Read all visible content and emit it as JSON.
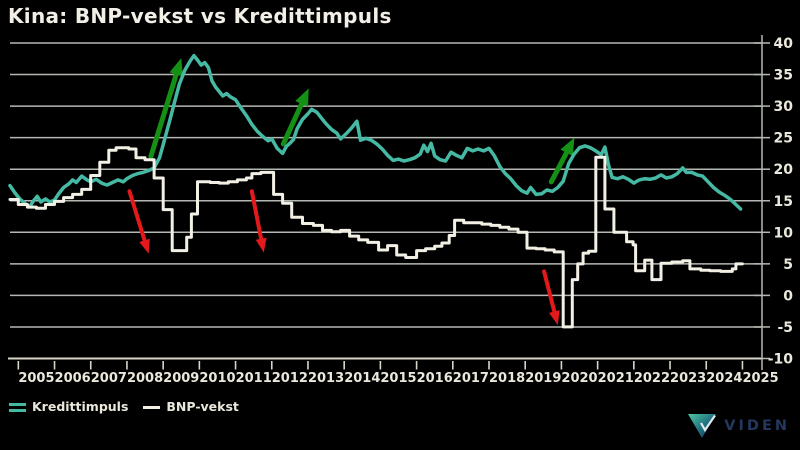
{
  "title": "Kina: BNP-vekst vs Kredittimpuls",
  "colors": {
    "background": "#000000",
    "title_text": "#f2efe6",
    "axis_text": "#eae7db",
    "gridline": "#b4b8b2",
    "axis_line": "#d8d5ca",
    "kredittimpuls": "#46b9a4",
    "bnp_vekst": "#f2efe4",
    "green_arrow": "#149114",
    "red_arrow": "#e4191c",
    "logo_text": "#23375f",
    "logo_gradient_start": "#4ec9a4",
    "logo_gradient_mid": "#1f6d7e",
    "logo_gradient_end": "#142f52"
  },
  "legend": [
    {
      "label": "Kredittimpuls",
      "color": "#46b9a4",
      "style": "double-line"
    },
    {
      "label": "BNP-vekst",
      "color": "#f2efe4",
      "style": "line"
    }
  ],
  "logo": {
    "text": "VIDEN"
  },
  "chart_data": {
    "type": "line",
    "title": "Kina: BNP-vekst vs Kredittimpuls",
    "grid": true,
    "legend_position": "bottom-left",
    "x_axis": {
      "range": [
        2004.77,
        2025.54
      ],
      "tick_years": [
        2005,
        2006,
        2007,
        2008,
        2009,
        2010,
        2011,
        2012,
        2013,
        2014,
        2015,
        2016,
        2017,
        2018,
        2019,
        2020,
        2021,
        2022,
        2023,
        2024,
        2025
      ],
      "labels": [
        "2005",
        "2006",
        "2007",
        "2008",
        "2009",
        "2010",
        "2011",
        "2012",
        "2013",
        "2014",
        "2015",
        "2016",
        "2017",
        "2018",
        "2019",
        "2020",
        "2021",
        "2022",
        "2023",
        "2024",
        "2025"
      ]
    },
    "y_axis": {
      "side": "right",
      "range": [
        -10,
        40
      ],
      "ticks": [
        40,
        35,
        30,
        25,
        20,
        15,
        10,
        5,
        0,
        -5,
        -10
      ]
    },
    "series": [
      {
        "name": "Kredittimpuls",
        "color": "#46b9a4",
        "interpolation": "linear",
        "points": [
          [
            2004.77,
            17.4
          ],
          [
            2004.9,
            16.3
          ],
          [
            2005.02,
            15.4
          ],
          [
            2005.12,
            14.9
          ],
          [
            2005.22,
            14.4
          ],
          [
            2005.32,
            14.1
          ],
          [
            2005.42,
            15.0
          ],
          [
            2005.52,
            15.7
          ],
          [
            2005.62,
            14.8
          ],
          [
            2005.75,
            15.3
          ],
          [
            2005.87,
            14.8
          ],
          [
            2006.0,
            15.1
          ],
          [
            2006.1,
            16.0
          ],
          [
            2006.25,
            17.1
          ],
          [
            2006.4,
            17.7
          ],
          [
            2006.5,
            18.3
          ],
          [
            2006.6,
            17.9
          ],
          [
            2006.75,
            18.9
          ],
          [
            2006.9,
            18.3
          ],
          [
            2007.0,
            18.0
          ],
          [
            2007.15,
            18.4
          ],
          [
            2007.3,
            17.8
          ],
          [
            2007.45,
            17.5
          ],
          [
            2007.6,
            17.9
          ],
          [
            2007.75,
            18.3
          ],
          [
            2007.9,
            18.0
          ],
          [
            2008.0,
            18.5
          ],
          [
            2008.15,
            19.0
          ],
          [
            2008.3,
            19.3
          ],
          [
            2008.45,
            19.5
          ],
          [
            2008.6,
            19.8
          ],
          [
            2008.75,
            20.2
          ],
          [
            2008.9,
            21.8
          ],
          [
            2009.0,
            23.9
          ],
          [
            2009.1,
            26.0
          ],
          [
            2009.2,
            28.1
          ],
          [
            2009.3,
            30.3
          ],
          [
            2009.45,
            33.5
          ],
          [
            2009.6,
            35.7
          ],
          [
            2009.75,
            37.2
          ],
          [
            2009.85,
            38.0
          ],
          [
            2009.95,
            37.3
          ],
          [
            2010.05,
            36.5
          ],
          [
            2010.15,
            36.9
          ],
          [
            2010.25,
            36.1
          ],
          [
            2010.35,
            34.0
          ],
          [
            2010.45,
            33.0
          ],
          [
            2010.55,
            32.3
          ],
          [
            2010.65,
            31.6
          ],
          [
            2010.75,
            32.0
          ],
          [
            2010.85,
            31.5
          ],
          [
            2011.0,
            31.0
          ],
          [
            2011.15,
            29.7
          ],
          [
            2011.3,
            28.5
          ],
          [
            2011.45,
            27.1
          ],
          [
            2011.6,
            26.0
          ],
          [
            2011.75,
            25.2
          ],
          [
            2011.9,
            24.5
          ],
          [
            2012.0,
            24.8
          ],
          [
            2012.15,
            23.3
          ],
          [
            2012.3,
            22.5
          ],
          [
            2012.4,
            23.6
          ],
          [
            2012.5,
            24.1
          ],
          [
            2012.6,
            24.7
          ],
          [
            2012.7,
            26.4
          ],
          [
            2012.85,
            27.9
          ],
          [
            2013.0,
            28.8
          ],
          [
            2013.1,
            29.5
          ],
          [
            2013.25,
            29.0
          ],
          [
            2013.4,
            27.9
          ],
          [
            2013.5,
            27.2
          ],
          [
            2013.65,
            26.3
          ],
          [
            2013.8,
            25.7
          ],
          [
            2013.9,
            24.8
          ],
          [
            2014.05,
            25.6
          ],
          [
            2014.2,
            26.5
          ],
          [
            2014.35,
            27.6
          ],
          [
            2014.45,
            24.6
          ],
          [
            2014.6,
            24.9
          ],
          [
            2014.75,
            24.6
          ],
          [
            2014.9,
            24.0
          ],
          [
            2015.05,
            23.2
          ],
          [
            2015.2,
            22.2
          ],
          [
            2015.35,
            21.4
          ],
          [
            2015.5,
            21.6
          ],
          [
            2015.65,
            21.3
          ],
          [
            2015.8,
            21.5
          ],
          [
            2015.95,
            21.8
          ],
          [
            2016.1,
            22.4
          ],
          [
            2016.2,
            23.8
          ],
          [
            2016.3,
            22.8
          ],
          [
            2016.4,
            24.1
          ],
          [
            2016.5,
            22.1
          ],
          [
            2016.65,
            21.5
          ],
          [
            2016.8,
            21.3
          ],
          [
            2016.95,
            22.7
          ],
          [
            2017.1,
            22.2
          ],
          [
            2017.25,
            21.8
          ],
          [
            2017.4,
            23.3
          ],
          [
            2017.55,
            22.9
          ],
          [
            2017.7,
            23.2
          ],
          [
            2017.85,
            22.9
          ],
          [
            2018.0,
            23.3
          ],
          [
            2018.15,
            22.1
          ],
          [
            2018.3,
            20.4
          ],
          [
            2018.45,
            19.3
          ],
          [
            2018.6,
            18.5
          ],
          [
            2018.75,
            17.4
          ],
          [
            2018.9,
            16.6
          ],
          [
            2019.05,
            16.2
          ],
          [
            2019.15,
            17.1
          ],
          [
            2019.3,
            16.0
          ],
          [
            2019.45,
            16.1
          ],
          [
            2019.6,
            16.7
          ],
          [
            2019.75,
            16.5
          ],
          [
            2019.9,
            17.1
          ],
          [
            2020.05,
            18.1
          ],
          [
            2020.2,
            20.9
          ],
          [
            2020.35,
            22.4
          ],
          [
            2020.5,
            23.4
          ],
          [
            2020.65,
            23.7
          ],
          [
            2020.8,
            23.4
          ],
          [
            2020.95,
            22.9
          ],
          [
            2021.1,
            22.3
          ],
          [
            2021.2,
            23.5
          ],
          [
            2021.3,
            20.7
          ],
          [
            2021.4,
            18.7
          ],
          [
            2021.55,
            18.5
          ],
          [
            2021.7,
            18.8
          ],
          [
            2021.85,
            18.4
          ],
          [
            2022.0,
            17.8
          ],
          [
            2022.15,
            18.3
          ],
          [
            2022.3,
            18.5
          ],
          [
            2022.45,
            18.4
          ],
          [
            2022.6,
            18.6
          ],
          [
            2022.75,
            19.1
          ],
          [
            2022.9,
            18.6
          ],
          [
            2023.05,
            18.8
          ],
          [
            2023.2,
            19.3
          ],
          [
            2023.35,
            20.2
          ],
          [
            2023.45,
            19.5
          ],
          [
            2023.6,
            19.5
          ],
          [
            2023.75,
            19.1
          ],
          [
            2023.9,
            18.9
          ],
          [
            2024.05,
            18.0
          ],
          [
            2024.2,
            17.1
          ],
          [
            2024.35,
            16.4
          ],
          [
            2024.5,
            15.9
          ],
          [
            2024.65,
            15.3
          ],
          [
            2024.8,
            14.5
          ],
          [
            2024.95,
            13.7
          ]
        ]
      },
      {
        "name": "BNP-vekst",
        "color": "#f2efe4",
        "interpolation": "step",
        "points": [
          [
            2004.77,
            15.2
          ],
          [
            2005.0,
            14.4
          ],
          [
            2005.25,
            14.0
          ],
          [
            2005.5,
            13.8
          ],
          [
            2005.75,
            14.4
          ],
          [
            2006.0,
            14.9
          ],
          [
            2006.25,
            15.5
          ],
          [
            2006.5,
            16.0
          ],
          [
            2006.75,
            16.8
          ],
          [
            2007.0,
            19.0
          ],
          [
            2007.25,
            21.1
          ],
          [
            2007.5,
            23.0
          ],
          [
            2007.7,
            23.4
          ],
          [
            2008.05,
            23.2
          ],
          [
            2008.25,
            21.8
          ],
          [
            2008.5,
            21.5
          ],
          [
            2008.75,
            18.6
          ],
          [
            2009.0,
            13.6
          ],
          [
            2009.25,
            7.1
          ],
          [
            2009.65,
            9.2
          ],
          [
            2009.78,
            12.9
          ],
          [
            2009.95,
            18.0
          ],
          [
            2010.3,
            17.9
          ],
          [
            2010.55,
            17.8
          ],
          [
            2010.8,
            18.0
          ],
          [
            2011.05,
            18.3
          ],
          [
            2011.3,
            18.6
          ],
          [
            2011.45,
            19.3
          ],
          [
            2011.7,
            19.5
          ],
          [
            2012.05,
            16.0
          ],
          [
            2012.3,
            14.6
          ],
          [
            2012.55,
            12.4
          ],
          [
            2012.85,
            11.4
          ],
          [
            2013.15,
            11.1
          ],
          [
            2013.4,
            10.3
          ],
          [
            2013.65,
            10.1
          ],
          [
            2013.9,
            10.3
          ],
          [
            2014.15,
            9.4
          ],
          [
            2014.4,
            8.8
          ],
          [
            2014.65,
            8.4
          ],
          [
            2014.95,
            7.2
          ],
          [
            2015.2,
            7.9
          ],
          [
            2015.45,
            6.4
          ],
          [
            2015.7,
            6.0
          ],
          [
            2016.0,
            7.1
          ],
          [
            2016.25,
            7.4
          ],
          [
            2016.5,
            7.8
          ],
          [
            2016.7,
            8.3
          ],
          [
            2016.9,
            9.5
          ],
          [
            2017.05,
            11.9
          ],
          [
            2017.3,
            11.5
          ],
          [
            2017.55,
            11.5
          ],
          [
            2017.8,
            11.3
          ],
          [
            2018.05,
            11.1
          ],
          [
            2018.3,
            10.8
          ],
          [
            2018.55,
            10.5
          ],
          [
            2018.8,
            10.0
          ],
          [
            2019.05,
            7.5
          ],
          [
            2019.3,
            7.4
          ],
          [
            2019.55,
            7.2
          ],
          [
            2019.8,
            6.9
          ],
          [
            2020.05,
            -5.0
          ],
          [
            2020.3,
            2.5
          ],
          [
            2020.45,
            5.0
          ],
          [
            2020.6,
            6.7
          ],
          [
            2020.75,
            7.0
          ],
          [
            2020.95,
            21.9
          ],
          [
            2021.2,
            13.7
          ],
          [
            2021.45,
            10.0
          ],
          [
            2021.8,
            8.5
          ],
          [
            2021.98,
            8.0
          ],
          [
            2022.05,
            3.9
          ],
          [
            2022.3,
            5.6
          ],
          [
            2022.5,
            2.5
          ],
          [
            2022.75,
            5.1
          ],
          [
            2023.05,
            5.3
          ],
          [
            2023.35,
            5.5
          ],
          [
            2023.55,
            4.2
          ],
          [
            2023.85,
            4.0
          ],
          [
            2024.1,
            3.9
          ],
          [
            2024.4,
            3.8
          ],
          [
            2024.72,
            4.2
          ],
          [
            2024.82,
            5.0
          ],
          [
            2025.0,
            5.0
          ]
        ]
      }
    ],
    "annotations": {
      "green_arrows": [
        {
          "from": [
            2008.66,
            22.0
          ],
          "to": [
            2009.5,
            37.6
          ]
        },
        {
          "from": [
            2012.32,
            24.0
          ],
          "to": [
            2013.02,
            32.8
          ]
        },
        {
          "from": [
            2019.72,
            18.0
          ],
          "to": [
            2020.36,
            25.0
          ]
        }
      ],
      "red_arrows": [
        {
          "from": [
            2008.07,
            16.5
          ],
          "to": [
            2008.6,
            6.6
          ]
        },
        {
          "from": [
            2011.45,
            16.5
          ],
          "to": [
            2011.78,
            6.8
          ]
        },
        {
          "from": [
            2019.52,
            3.8
          ],
          "to": [
            2019.9,
            -4.7
          ]
        }
      ]
    }
  }
}
